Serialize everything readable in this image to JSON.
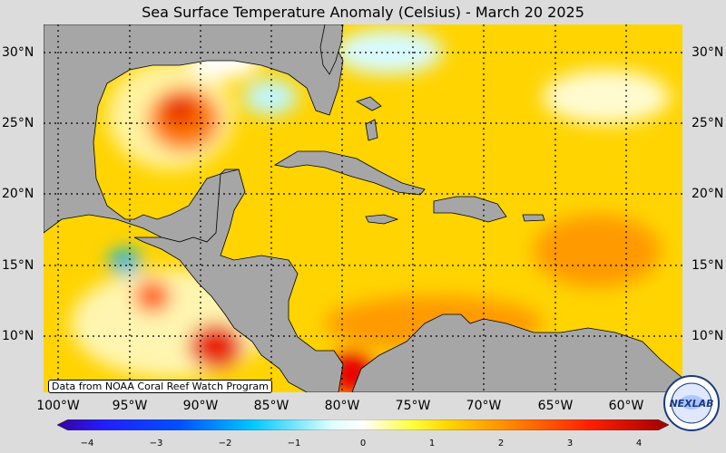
{
  "title": "Sea Surface Temperature Anomaly (Celsius) - March 20 2025",
  "lat_labels": [
    "30°N",
    "25°N",
    "20°N",
    "15°N",
    "10°N"
  ],
  "lon_labels": [
    "100°W",
    "95°W",
    "90°W",
    "85°W",
    "80°W",
    "75°W",
    "70°W",
    "65°W",
    "60°W"
  ],
  "credit": "Data from NOAA Coral Reef Watch Program",
  "colorbar": {
    "ticks": [
      "−4",
      "−3",
      "−2",
      "−1",
      "0",
      "1",
      "2",
      "3",
      "4"
    ],
    "range": [
      -4,
      4
    ]
  },
  "logo_text": "NEXLAB",
  "colors": {
    "land": "#a6a6a6",
    "background": "#dcdcdc",
    "ocean_base": "#ffd400",
    "warm": "#ff6a00",
    "hot": "#e60000",
    "cool": "#9ff0ff",
    "cold": "#00b4f0"
  }
}
